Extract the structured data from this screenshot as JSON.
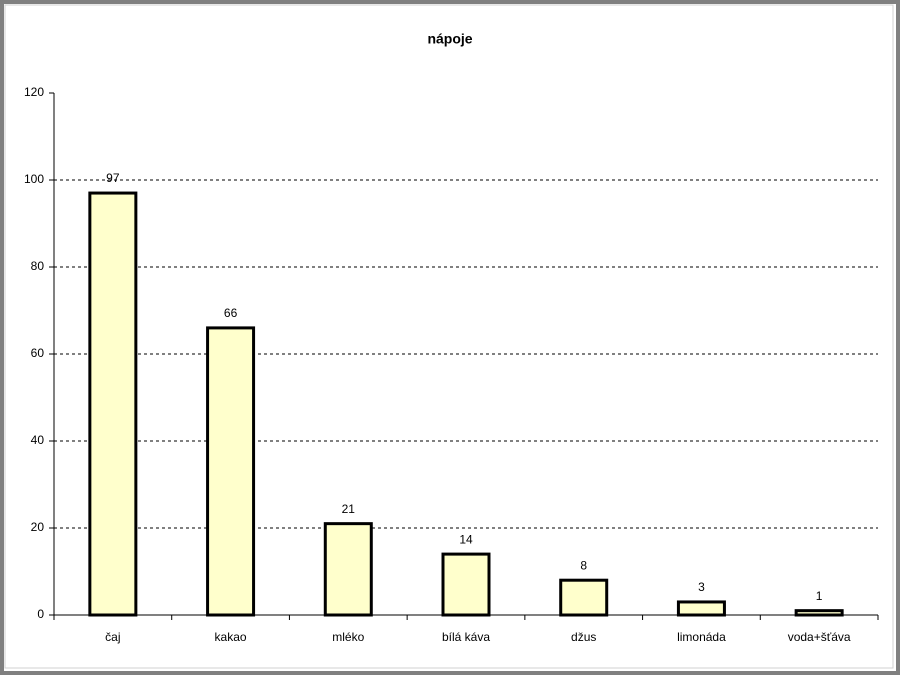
{
  "chart_data": {
    "type": "bar",
    "title": "nápoje",
    "categories": [
      "čaj",
      "kakao",
      "mléko",
      "bílá káva",
      "džus",
      "limonáda",
      "voda+šťáva"
    ],
    "values": [
      97,
      66,
      21,
      14,
      8,
      3,
      1
    ],
    "color": "#ffffcc",
    "ylim": [
      0,
      120
    ],
    "yticks": [
      0,
      20,
      40,
      60,
      80,
      100,
      120
    ],
    "grid": true
  }
}
